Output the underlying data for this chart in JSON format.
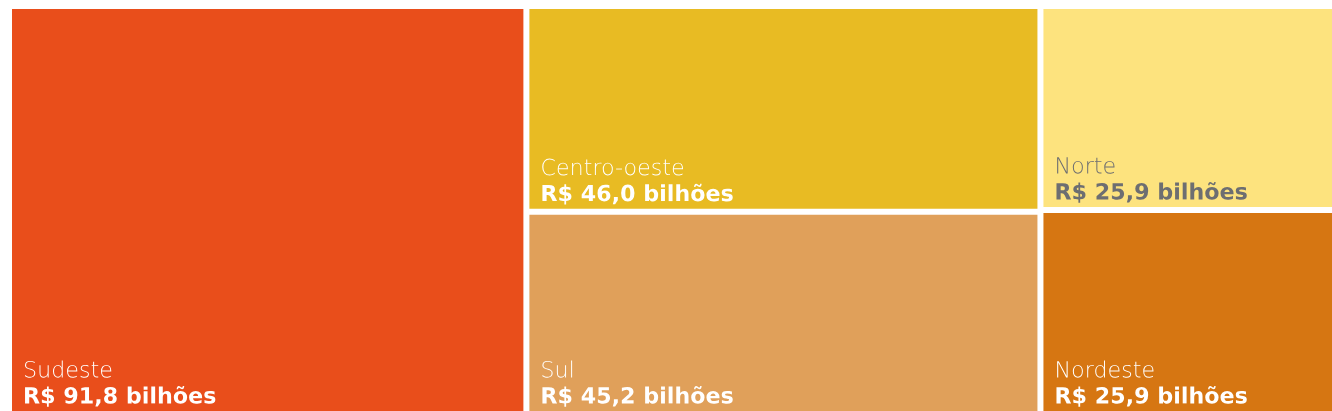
{
  "chart_data": {
    "type": "other",
    "categories": [
      "Sudeste",
      "Centro-oeste",
      "Sul",
      "Norte",
      "Nordeste"
    ],
    "values": [
      91.8,
      46.0,
      45.2,
      25.9,
      25.9
    ],
    "value_labels": [
      "R$ 91,8 bilhões",
      "R$ 46,0 bilhões",
      "R$ 45,2 bilhões",
      "R$ 25,9 bilhões",
      "R$ 25,9 bilhões"
    ],
    "colors": [
      "#e94e1b",
      "#e8bb23",
      "#e0a05a",
      "#fde37e",
      "#d67612"
    ]
  }
}
